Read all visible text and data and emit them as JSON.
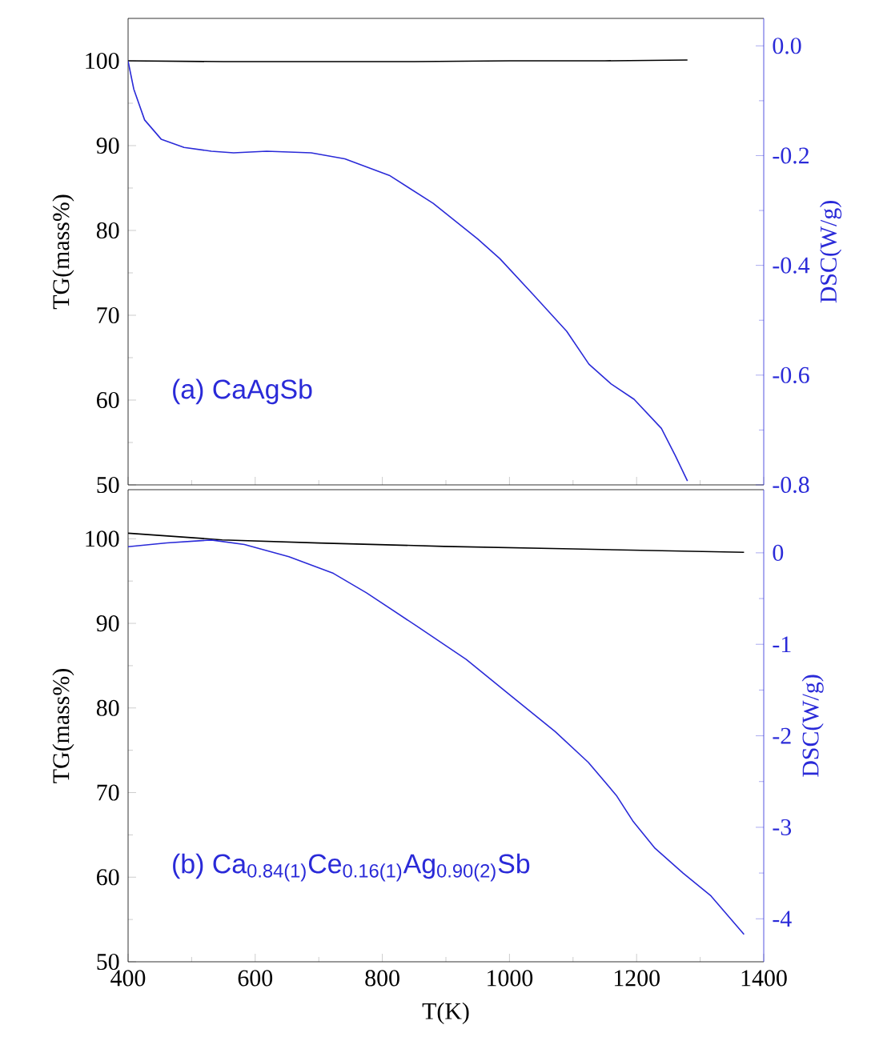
{
  "chart_data": [
    {
      "type": "line",
      "ylabel": "TG(mass%)",
      "y2label": "DSC(W/g)",
      "tick_labels": "y",
      "marker": "none",
      "annotations": [
        "(a) CaAgSb"
      ],
      "xlim": [
        400,
        1400
      ],
      "xticks": [
        400,
        600,
        800,
        1000,
        1200,
        1400
      ],
      "ylim": [
        50,
        105
      ],
      "yticks": [
        50,
        60,
        70,
        80,
        90,
        100
      ],
      "y2lim": [
        -0.8,
        0.05
      ],
      "y2ticks": [
        {
          "value": 0,
          "label": "0.0"
        },
        {
          "value": -0.2,
          "label": "-0.2"
        },
        {
          "value": -0.4,
          "label": "-0.4"
        },
        {
          "value": -0.6,
          "label": "-0.6"
        },
        {
          "value": -0.8,
          "label": "-0.8"
        }
      ],
      "series": [
        {
          "color": "#000000",
          "x": [
            400,
            550,
            700,
            850,
            1000,
            1150,
            1280
          ],
          "values": [
            100,
            99.9,
            99.9,
            99.9,
            100,
            100,
            100.1
          ]
        },
        {
          "color": "#2a2ad8",
          "axis": "y2",
          "x": [
            400,
            409,
            426,
            452,
            488,
            531,
            566,
            618,
            688,
            741,
            811,
            880,
            950,
            985,
            1038,
            1090,
            1125,
            1160,
            1196,
            1239,
            1261,
            1280
          ],
          "values": [
            -0.028,
            -0.079,
            -0.135,
            -0.17,
            -0.185,
            -0.192,
            -0.195,
            -0.192,
            -0.195,
            -0.206,
            -0.236,
            -0.287,
            -0.352,
            -0.388,
            -0.454,
            -0.52,
            -0.58,
            -0.616,
            -0.644,
            -0.697,
            -0.747,
            -0.793
          ]
        }
      ]
    },
    {
      "type": "line",
      "xlabel": "T(K)",
      "ylabel": "TG(mass%)",
      "y2label": "DSC(W/g)",
      "marker": "none",
      "annotations": [
        "(b) Ca$_{0.84(1)}$Ce$_{0.16(1)}$Ag$_{0.90(2)}$Sb"
      ],
      "xlim": [
        400,
        1400
      ],
      "xticks": [
        400,
        600,
        800,
        1000,
        1200,
        1400
      ],
      "ylim": [
        50,
        105.8
      ],
      "yticks": [
        50,
        60,
        70,
        80,
        90,
        100
      ],
      "y2lim": [
        -4.47,
        0.69
      ],
      "y2ticks": [
        0,
        -1,
        -2,
        -3,
        -4
      ],
      "series": [
        {
          "color": "#000000",
          "x": [
            400,
            548,
            700,
            897,
            1100,
            1369
          ],
          "values": [
            100.66,
            99.87,
            99.5,
            99.1,
            98.8,
            98.4
          ]
        },
        {
          "color": "#2a2ad8",
          "axis": "y2",
          "x": [
            400,
            461,
            531,
            583,
            653,
            723,
            775,
            854,
            932,
            1002,
            1072,
            1124,
            1168,
            1194,
            1229,
            1273,
            1317,
            1369
          ],
          "values": [
            0.067,
            0.109,
            0.14,
            0.091,
            -0.042,
            -0.225,
            -0.437,
            -0.8,
            -1.166,
            -1.56,
            -1.955,
            -2.29,
            -2.65,
            -2.93,
            -3.23,
            -3.5,
            -3.75,
            -4.17
          ]
        }
      ]
    }
  ]
}
